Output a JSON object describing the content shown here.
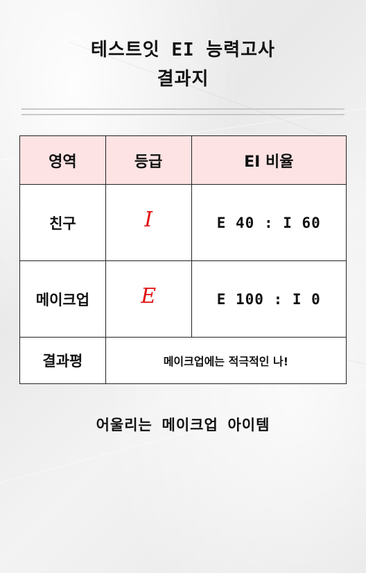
{
  "header": {
    "title_line1": "테스트잇 EI 능력고사",
    "title_line2": "결과지"
  },
  "table": {
    "headers": [
      "영역",
      "등급",
      "EI 비율"
    ],
    "rows": [
      {
        "area": "친구",
        "grade": "I",
        "ratio": "E 40 : I 60"
      },
      {
        "area": "메이크업",
        "grade": "E",
        "ratio": "E 100 : I 0"
      }
    ],
    "summary_label": "결과평",
    "summary_text": "메이크업에는 적극적인 나!"
  },
  "footer": {
    "text": "어울리는 메이크업 아이템"
  },
  "colors": {
    "header_bg": "#fde3e3",
    "grade_color": "#e10e0e",
    "border": "#222222"
  }
}
